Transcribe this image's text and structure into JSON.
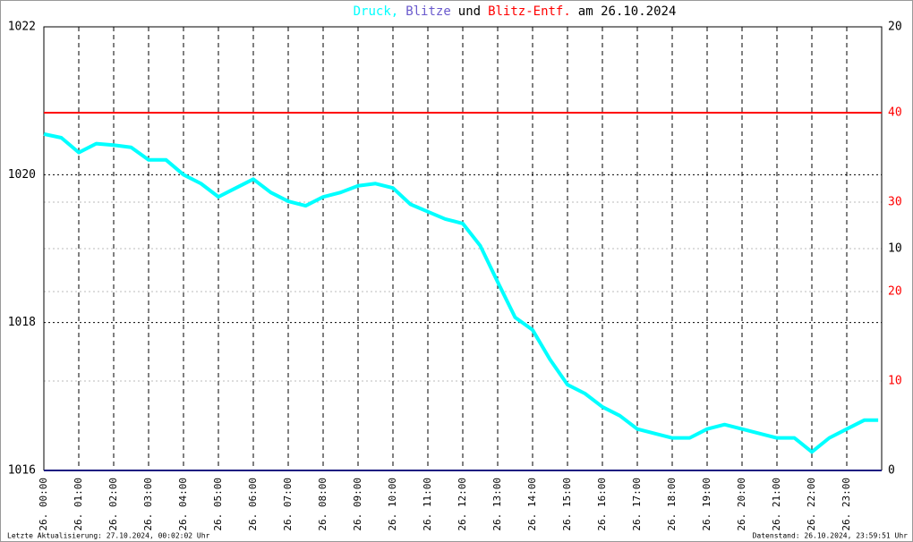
{
  "chart_data": {
    "type": "line",
    "title_parts": [
      "und",
      "am 26.10.2024"
    ],
    "footer_left": "Letzte Aktualisierung: 27.10.2024, 00:02:02 Uhr",
    "footer_right": "Datenstand: 26.10.2024, 23:59:51 Uhr",
    "xlim": [
      0,
      24
    ],
    "xticks": [
      {
        "value": 0,
        "label": "26. 00:00"
      },
      {
        "value": 1,
        "label": "26. 01:00"
      },
      {
        "value": 2,
        "label": "26. 02:00"
      },
      {
        "value": 3,
        "label": "26. 03:00"
      },
      {
        "value": 4,
        "label": "26. 04:00"
      },
      {
        "value": 5,
        "label": "26. 05:00"
      },
      {
        "value": 6,
        "label": "26. 06:00"
      },
      {
        "value": 7,
        "label": "26. 07:00"
      },
      {
        "value": 8,
        "label": "26. 08:00"
      },
      {
        "value": 9,
        "label": "26. 09:00"
      },
      {
        "value": 10,
        "label": "26. 10:00"
      },
      {
        "value": 11,
        "label": "26. 11:00"
      },
      {
        "value": 12,
        "label": "26. 12:00"
      },
      {
        "value": 13,
        "label": "26. 13:00"
      },
      {
        "value": 14,
        "label": "26. 14:00"
      },
      {
        "value": 15,
        "label": "26. 15:00"
      },
      {
        "value": 16,
        "label": "26. 16:00"
      },
      {
        "value": 17,
        "label": "26. 17:00"
      },
      {
        "value": 18,
        "label": "26. 18:00"
      },
      {
        "value": 19,
        "label": "26. 19:00"
      },
      {
        "value": 20,
        "label": "26. 20:00"
      },
      {
        "value": 21,
        "label": "26. 21:00"
      },
      {
        "value": 22,
        "label": "26. 22:00"
      },
      {
        "value": 23,
        "label": "26. 23:00"
      }
    ],
    "ylim": [
      1016,
      1022
    ],
    "yticks": [
      1016,
      1018,
      1020,
      1022
    ],
    "y2lim": [
      0,
      20
    ],
    "y2ticks": [
      0,
      10,
      20
    ],
    "y3lim": [
      0,
      49.6
    ],
    "y3ticks": [
      10,
      20,
      30,
      40
    ],
    "y3color": "#ff0000",
    "grid": true,
    "series": [
      {
        "name": "Druck,",
        "color": "#00ffff",
        "axis": "y",
        "x": [
          0,
          0.5,
          1,
          1.5,
          2,
          2.5,
          3,
          3.5,
          4,
          4.5,
          5,
          5.5,
          6,
          6.5,
          7,
          7.5,
          8,
          8.5,
          9,
          9.5,
          10,
          10.5,
          11,
          11.5,
          12,
          12.5,
          13,
          13.5,
          14,
          14.5,
          15,
          15.5,
          16,
          16.5,
          17,
          17.5,
          18,
          18.5,
          19,
          19.5,
          20,
          20.5,
          21,
          21.5,
          22,
          22.5,
          23,
          23.5,
          23.9
        ],
        "values": [
          1020.55,
          1020.5,
          1020.3,
          1020.42,
          1020.4,
          1020.37,
          1020.2,
          1020.2,
          1020.0,
          1019.88,
          1019.7,
          1019.82,
          1019.94,
          1019.76,
          1019.64,
          1019.58,
          1019.7,
          1019.76,
          1019.85,
          1019.88,
          1019.82,
          1019.6,
          1019.5,
          1019.4,
          1019.34,
          1019.04,
          1018.55,
          1018.07,
          1017.9,
          1017.5,
          1017.16,
          1017.04,
          1016.86,
          1016.74,
          1016.56,
          1016.5,
          1016.44,
          1016.44,
          1016.56,
          1016.62,
          1016.56,
          1016.5,
          1016.44,
          1016.44,
          1016.25,
          1016.44,
          1016.56,
          1016.68,
          1016.68
        ]
      },
      {
        "name": "Blitze",
        "color": "#1a1a80",
        "axis": "y2",
        "x": [
          0,
          24
        ],
        "values": [
          0,
          0
        ]
      },
      {
        "name": "Blitz-Entf.",
        "color": "#ff0000",
        "axis": "y3",
        "x": [
          0,
          24
        ],
        "values": [
          40,
          40
        ]
      }
    ]
  }
}
